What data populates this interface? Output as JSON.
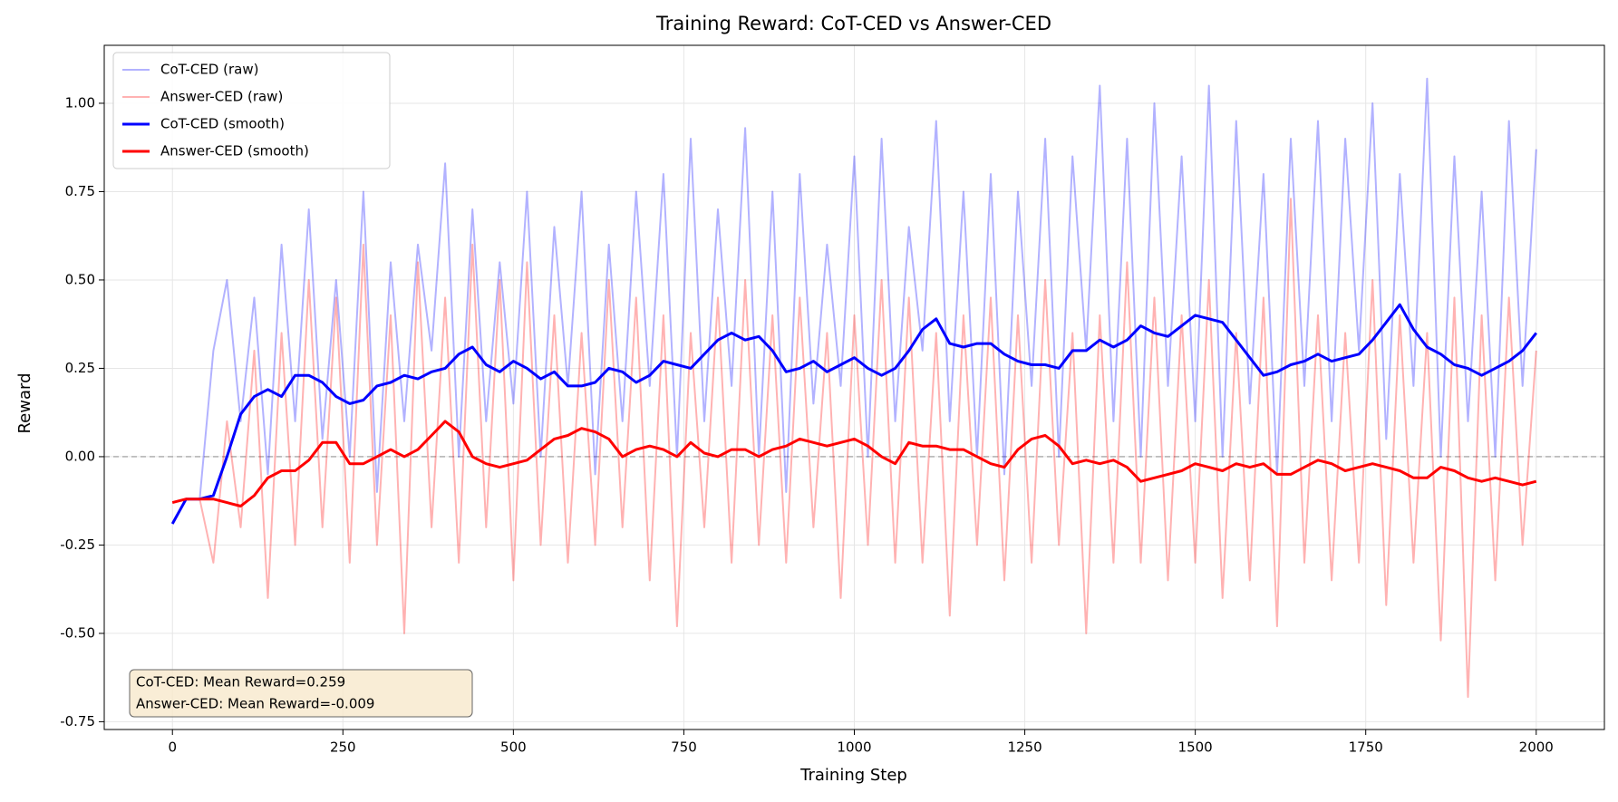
{
  "chart_data": {
    "type": "line",
    "title": "Training Reward: CoT-CED vs Answer-CED",
    "xlabel": "Training Step",
    "ylabel": "Reward",
    "xlim": [
      -100,
      2100
    ],
    "ylim": [
      -0.772,
      1.164
    ],
    "xticks": [
      0,
      250,
      500,
      750,
      1000,
      1250,
      1500,
      1750,
      2000
    ],
    "yticks": [
      {
        "value": -0.75,
        "label": "-0.75"
      },
      {
        "value": -0.5,
        "label": "-0.50"
      },
      {
        "value": -0.25,
        "label": "-0.25"
      },
      {
        "value": 0,
        "label": "0.00"
      },
      {
        "value": 0.25,
        "label": "0.25"
      },
      {
        "value": 0.5,
        "label": "0.50"
      },
      {
        "value": 0.75,
        "label": "0.75"
      },
      {
        "value": 1,
        "label": "1.00"
      }
    ],
    "grid": true,
    "hline": 0,
    "legend": "upper left",
    "annotation": [
      "CoT-CED: Mean Reward=0.259",
      "Answer-CED: Mean Reward=-0.009"
    ],
    "x": [
      0,
      20,
      40,
      60,
      80,
      100,
      120,
      140,
      160,
      180,
      200,
      220,
      240,
      260,
      280,
      300,
      320,
      340,
      360,
      380,
      400,
      420,
      440,
      460,
      480,
      500,
      520,
      540,
      560,
      580,
      600,
      620,
      640,
      660,
      680,
      700,
      720,
      740,
      760,
      780,
      800,
      820,
      840,
      860,
      880,
      900,
      920,
      940,
      960,
      980,
      1000,
      1020,
      1040,
      1060,
      1080,
      1100,
      1120,
      1140,
      1160,
      1180,
      1200,
      1220,
      1240,
      1260,
      1280,
      1300,
      1320,
      1340,
      1360,
      1380,
      1400,
      1420,
      1440,
      1460,
      1480,
      1500,
      1520,
      1540,
      1560,
      1580,
      1600,
      1620,
      1640,
      1660,
      1680,
      1700,
      1720,
      1740,
      1760,
      1780,
      1800,
      1820,
      1840,
      1860,
      1880,
      1900,
      1920,
      1940,
      1960,
      1980,
      2000
    ],
    "series": [
      {
        "name": "CoT-CED (raw)",
        "color": "#0000ff",
        "alpha": 0.3,
        "width": 2,
        "values": [
          -0.19,
          -0.12,
          -0.12,
          0.3,
          0.5,
          0.1,
          0.45,
          -0.05,
          0.6,
          0.1,
          0.7,
          0.05,
          0.5,
          0.0,
          0.75,
          -0.1,
          0.55,
          0.1,
          0.6,
          0.3,
          0.83,
          0.0,
          0.7,
          0.1,
          0.55,
          0.15,
          0.75,
          0.0,
          0.65,
          0.2,
          0.75,
          -0.05,
          0.6,
          0.1,
          0.75,
          0.2,
          0.8,
          0.0,
          0.9,
          0.1,
          0.7,
          0.2,
          0.93,
          0.0,
          0.75,
          -0.1,
          0.8,
          0.15,
          0.6,
          0.2,
          0.85,
          0.0,
          0.9,
          0.1,
          0.65,
          0.3,
          0.95,
          0.1,
          0.75,
          0.0,
          0.8,
          -0.05,
          0.75,
          0.2,
          0.9,
          0.0,
          0.85,
          0.3,
          1.05,
          0.1,
          0.9,
          0.0,
          1.0,
          0.2,
          0.85,
          0.1,
          1.05,
          0.0,
          0.95,
          0.15,
          0.8,
          -0.05,
          0.9,
          0.2,
          0.95,
          0.1,
          0.9,
          0.3,
          1.0,
          0.05,
          0.8,
          0.2,
          1.07,
          0.0,
          0.85,
          0.1,
          0.75,
          0.0,
          0.95,
          0.2,
          0.87
        ]
      },
      {
        "name": "Answer-CED (raw)",
        "color": "#ff0000",
        "alpha": 0.3,
        "width": 2,
        "values": [
          -0.13,
          -0.12,
          -0.12,
          -0.3,
          0.1,
          -0.2,
          0.3,
          -0.4,
          0.35,
          -0.25,
          0.5,
          -0.2,
          0.45,
          -0.3,
          0.6,
          -0.25,
          0.4,
          -0.5,
          0.55,
          -0.2,
          0.45,
          -0.3,
          0.6,
          -0.2,
          0.5,
          -0.35,
          0.55,
          -0.25,
          0.4,
          -0.3,
          0.35,
          -0.25,
          0.5,
          -0.2,
          0.45,
          -0.35,
          0.4,
          -0.48,
          0.35,
          -0.2,
          0.45,
          -0.3,
          0.5,
          -0.25,
          0.4,
          -0.3,
          0.45,
          -0.2,
          0.35,
          -0.4,
          0.4,
          -0.25,
          0.5,
          -0.3,
          0.45,
          -0.3,
          0.35,
          -0.45,
          0.4,
          -0.25,
          0.45,
          -0.35,
          0.4,
          -0.3,
          0.5,
          -0.25,
          0.35,
          -0.5,
          0.4,
          -0.3,
          0.55,
          -0.3,
          0.45,
          -0.35,
          0.4,
          -0.3,
          0.5,
          -0.4,
          0.35,
          -0.35,
          0.45,
          -0.48,
          0.73,
          -0.3,
          0.4,
          -0.35,
          0.35,
          -0.3,
          0.5,
          -0.42,
          0.4,
          -0.3,
          0.35,
          -0.52,
          0.45,
          -0.68,
          0.4,
          -0.35,
          0.45,
          -0.25,
          0.3
        ]
      },
      {
        "name": "CoT-CED (smooth)",
        "color": "#0000ff",
        "alpha": 1,
        "width": 3,
        "values": [
          -0.19,
          -0.12,
          -0.12,
          -0.11,
          0.0,
          0.12,
          0.17,
          0.19,
          0.17,
          0.23,
          0.23,
          0.21,
          0.17,
          0.15,
          0.16,
          0.2,
          0.21,
          0.23,
          0.22,
          0.24,
          0.25,
          0.29,
          0.31,
          0.26,
          0.24,
          0.27,
          0.25,
          0.22,
          0.24,
          0.2,
          0.2,
          0.21,
          0.25,
          0.24,
          0.21,
          0.23,
          0.27,
          0.26,
          0.25,
          0.29,
          0.33,
          0.35,
          0.33,
          0.34,
          0.3,
          0.24,
          0.25,
          0.27,
          0.24,
          0.26,
          0.28,
          0.25,
          0.23,
          0.25,
          0.3,
          0.36,
          0.39,
          0.32,
          0.31,
          0.32,
          0.32,
          0.29,
          0.27,
          0.26,
          0.26,
          0.25,
          0.3,
          0.3,
          0.33,
          0.31,
          0.33,
          0.37,
          0.35,
          0.34,
          0.37,
          0.4,
          0.39,
          0.38,
          0.33,
          0.28,
          0.23,
          0.24,
          0.26,
          0.27,
          0.29,
          0.27,
          0.28,
          0.29,
          0.33,
          0.38,
          0.43,
          0.36,
          0.31,
          0.29,
          0.26,
          0.25,
          0.23,
          0.25,
          0.27,
          0.3,
          0.35
        ]
      },
      {
        "name": "Answer-CED (smooth)",
        "color": "#ff0000",
        "alpha": 1,
        "width": 3,
        "values": [
          -0.13,
          -0.12,
          -0.12,
          -0.12,
          -0.13,
          -0.14,
          -0.11,
          -0.06,
          -0.04,
          -0.04,
          -0.01,
          0.04,
          0.04,
          -0.02,
          -0.02,
          0.0,
          0.02,
          0.0,
          0.02,
          0.06,
          0.1,
          0.07,
          0.0,
          -0.02,
          -0.03,
          -0.02,
          -0.01,
          0.02,
          0.05,
          0.06,
          0.08,
          0.07,
          0.05,
          0.0,
          0.02,
          0.03,
          0.02,
          0.0,
          0.04,
          0.01,
          0.0,
          0.02,
          0.02,
          0.0,
          0.02,
          0.03,
          0.05,
          0.04,
          0.03,
          0.04,
          0.05,
          0.03,
          0.0,
          -0.02,
          0.04,
          0.03,
          0.03,
          0.02,
          0.02,
          0.0,
          -0.02,
          -0.03,
          0.02,
          0.05,
          0.06,
          0.03,
          -0.02,
          -0.01,
          -0.02,
          -0.01,
          -0.03,
          -0.07,
          -0.06,
          -0.05,
          -0.04,
          -0.02,
          -0.03,
          -0.04,
          -0.02,
          -0.03,
          -0.02,
          -0.05,
          -0.05,
          -0.03,
          -0.01,
          -0.02,
          -0.04,
          -0.03,
          -0.02,
          -0.03,
          -0.04,
          -0.06,
          -0.06,
          -0.03,
          -0.04,
          -0.06,
          -0.07,
          -0.06,
          -0.07,
          -0.08,
          -0.07
        ]
      }
    ]
  }
}
